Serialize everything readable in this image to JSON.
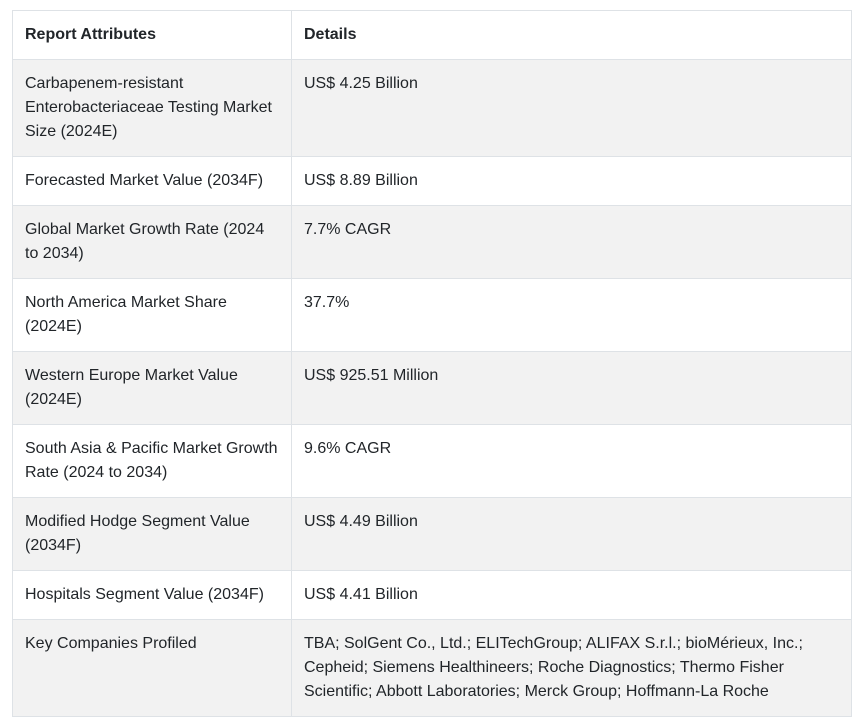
{
  "colors": {
    "background": "#ffffff",
    "text": "#212529",
    "border": "#dee2e6",
    "stripe": "#f2f2f2"
  },
  "table": {
    "columns": [
      {
        "label": "Report Attributes"
      },
      {
        "label": "Details"
      }
    ],
    "rows": [
      {
        "attribute": "Carbapenem-resistant Enterobacteriaceae Testing Market Size (2024E)",
        "detail": "US$ 4.25 Billion"
      },
      {
        "attribute": "Forecasted Market Value (2034F)",
        "detail": "US$ 8.89 Billion"
      },
      {
        "attribute": "Global Market Growth Rate (2024 to 2034)",
        "detail": "7.7% CAGR"
      },
      {
        "attribute": "North America Market Share (2024E)",
        "detail": "37.7%"
      },
      {
        "attribute": "Western Europe Market Value (2024E)",
        "detail": "US$ 925.51 Million"
      },
      {
        "attribute": "South Asia & Pacific Market Growth Rate (2024 to 2034)",
        "detail": "9.6% CAGR"
      },
      {
        "attribute": "Modified Hodge Segment Value (2034F)",
        "detail": "US$ 4.49 Billion"
      },
      {
        "attribute": "Hospitals Segment Value (2034F)",
        "detail": "US$ 4.41 Billion"
      },
      {
        "attribute": "Key Companies Profiled",
        "detail": "TBA; SolGent Co., Ltd.; ELITechGroup; ALIFAX S.r.l.; bioMérieux, Inc.; Cepheid; Siemens Healthineers; Roche Diagnostics; Thermo Fisher Scientific; Abbott Laboratories; Merck Group; Hoffmann-La Roche"
      }
    ]
  }
}
